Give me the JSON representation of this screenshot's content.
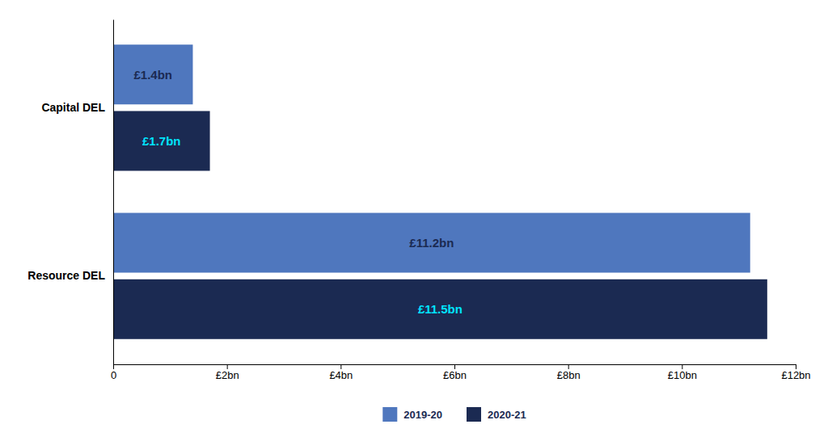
{
  "chart_data": {
    "type": "bar",
    "orientation": "horizontal",
    "categories": [
      "Resource DEL",
      "Capital DEL"
    ],
    "series": [
      {
        "name": "2019-20",
        "color": "#4F77BE",
        "values": [
          11.2,
          1.4
        ],
        "value_labels": [
          "£11.2bn",
          "£1.4bn"
        ]
      },
      {
        "name": "2020-21",
        "color": "#1B2A52",
        "values": [
          11.5,
          1.7
        ],
        "value_labels": [
          "£11.5bn",
          "£1.7bn"
        ]
      }
    ],
    "xlim": [
      0,
      12
    ],
    "xticks": [
      0,
      {
        "value": 2,
        "label": "£2bn"
      },
      {
        "value": 4,
        "label": "£4bn"
      },
      {
        "value": 6,
        "label": "£6bn"
      },
      {
        "value": 8,
        "label": "£8bn"
      },
      {
        "value": 10,
        "label": "£10bn"
      },
      {
        "value": 12,
        "label": "£12bn"
      }
    ],
    "data_labels": true,
    "legend": "bottom",
    "grid": false
  }
}
